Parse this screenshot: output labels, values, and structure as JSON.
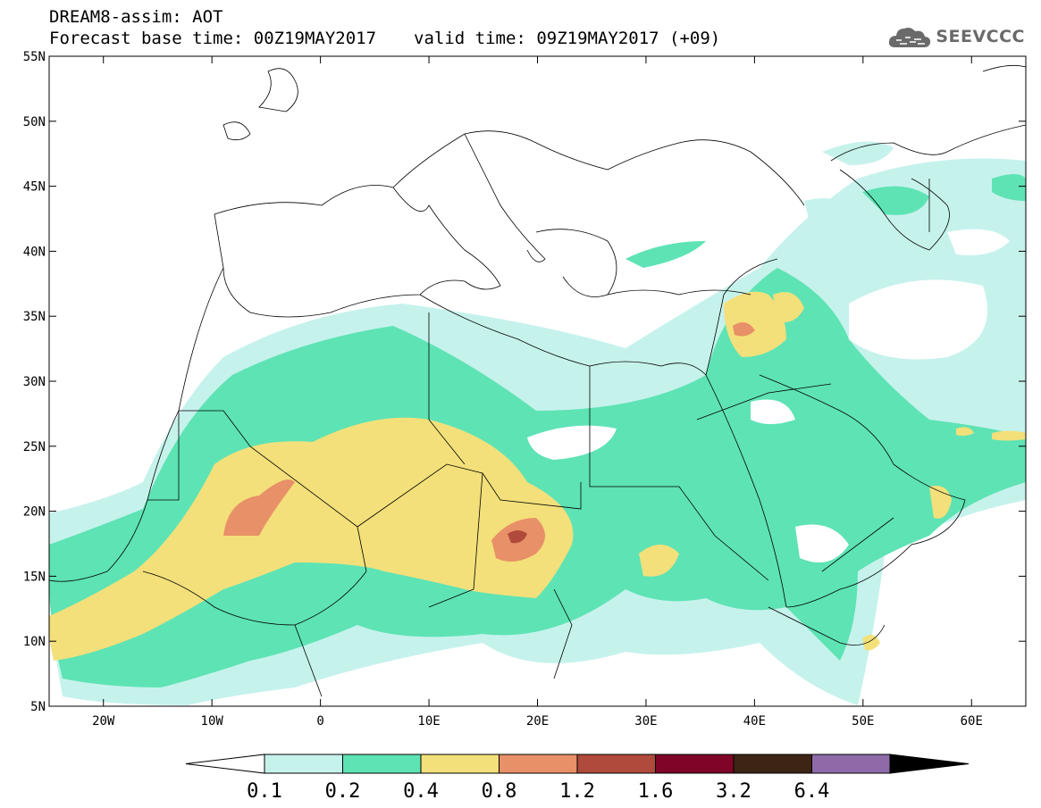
{
  "header": {
    "line1": "DREAM8-assim: AOT",
    "base_time": "Forecast base time: 00Z19MAY2017",
    "valid_time": "valid time: 09Z19MAY2017 (+09)"
  },
  "logo": {
    "text": "SEEVCCC",
    "icon": "cloud-icon"
  },
  "map": {
    "lon_range": [
      -25,
      65
    ],
    "lat_range": [
      5,
      55
    ],
    "lat_labels": [
      "55N",
      "50N",
      "45N",
      "40N",
      "35N",
      "30N",
      "25N",
      "20N",
      "15N",
      "10N",
      "5N"
    ],
    "lon_labels": [
      "20W",
      "10W",
      "0",
      "10E",
      "20E",
      "30E",
      "40E",
      "50E",
      "60E"
    ]
  },
  "colorbar": {
    "labels": [
      "0.1",
      "0.2",
      "0.4",
      "0.8",
      "1.2",
      "1.6",
      "3.2",
      "6.4"
    ],
    "colors": [
      "#ffffff",
      "#c6f2ec",
      "#5ee3b4",
      "#f3e07a",
      "#e89068",
      "#b04a3c",
      "#7e0528",
      "#3d2414",
      "#8e6aa8"
    ]
  }
}
